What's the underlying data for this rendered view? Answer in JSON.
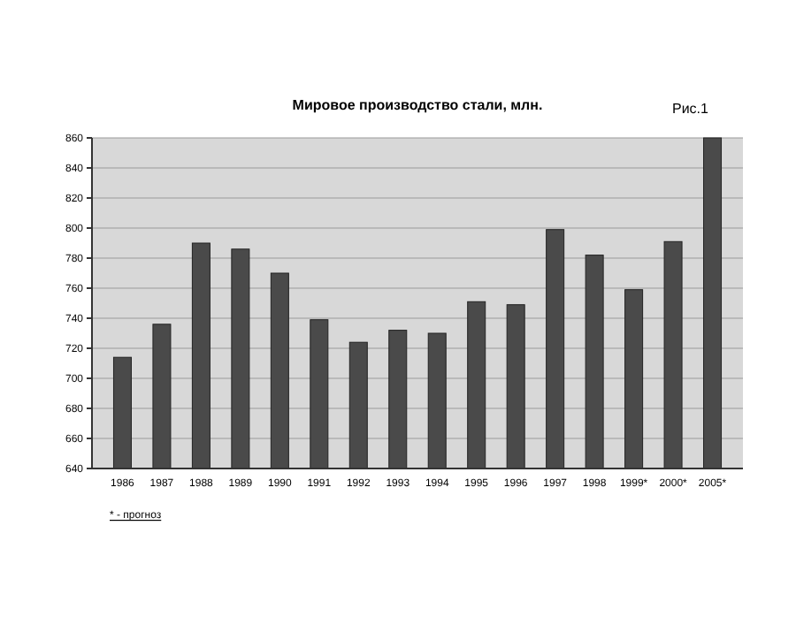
{
  "chart_data": {
    "type": "bar",
    "title": "Мировое производство стали, млн.",
    "categories": [
      "1986",
      "1987",
      "1988",
      "1989",
      "1990",
      "1991",
      "1992",
      "1993",
      "1994",
      "1995",
      "1996",
      "1997",
      "1998",
      "1999*",
      "2000*",
      "2005*"
    ],
    "values": [
      714,
      736,
      790,
      786,
      770,
      739,
      724,
      732,
      730,
      751,
      749,
      799,
      782,
      759,
      791,
      860
    ],
    "color": "#4a4a4a",
    "ylim": [
      640,
      860
    ],
    "yticks": [
      640,
      660,
      680,
      700,
      720,
      740,
      760,
      780,
      800,
      820,
      840,
      860
    ],
    "grid": "y",
    "annotations": [
      "Рис.1",
      "* - прогноз"
    ]
  }
}
